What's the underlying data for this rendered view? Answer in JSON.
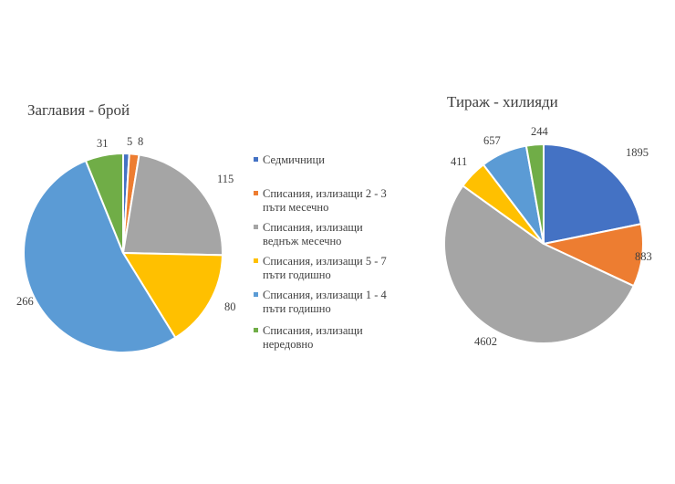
{
  "chart_data": [
    {
      "type": "pie",
      "title": "Заглавия - брой",
      "categories": [
        "Седмичници",
        "Списания, излизащи 2 - 3 пъти месечно",
        "Списания, излизащи веднъж месечно",
        "Списания, излизащи 5 - 7 пъти годишно",
        "Списания, излизащи 1 - 4 пъти годишно",
        "Списания, излизащи нередовно"
      ],
      "values": [
        5,
        8,
        115,
        80,
        266,
        31
      ],
      "colors": [
        "#4472c4",
        "#ed7d31",
        "#a5a5a5",
        "#ffc000",
        "#5b9bd5",
        "#70ad47"
      ],
      "legend": "between charts"
    },
    {
      "type": "pie",
      "title": "Тираж - хилияди",
      "categories": [
        "Седмичници",
        "Списания, излизащи 2 - 3 пъти месечно",
        "Списания, излизащи веднъж месечно",
        "Списания, излизащи 5 - 7 пъти годишно",
        "Списания, излизащи 1 - 4 пъти годишно",
        "Списания, излизащи нередовно"
      ],
      "values": [
        1895,
        883,
        4602,
        411,
        657,
        244
      ],
      "colors": [
        "#4472c4",
        "#ed7d31",
        "#a5a5a5",
        "#ffc000",
        "#5b9bd5",
        "#70ad47"
      ]
    }
  ],
  "legend": {
    "items": [
      {
        "lines": [
          "Седмичници"
        ],
        "color": "#4472c4"
      },
      {
        "lines": [
          "Списания, излизащи 2 - 3",
          "пъти месечно"
        ],
        "color": "#ed7d31"
      },
      {
        "lines": [
          "Списания, излизащи",
          "веднъж месечно"
        ],
        "color": "#a5a5a5"
      },
      {
        "lines": [
          "Списания, излизащи 5 - 7",
          "пъти годишно"
        ],
        "color": "#ffc000"
      },
      {
        "lines": [
          "Списания, излизащи 1 - 4",
          "пъти годишно"
        ],
        "color": "#5b9bd5"
      },
      {
        "lines": [
          "Списания, излизащи",
          "нередовно"
        ],
        "color": "#70ad47"
      }
    ]
  }
}
